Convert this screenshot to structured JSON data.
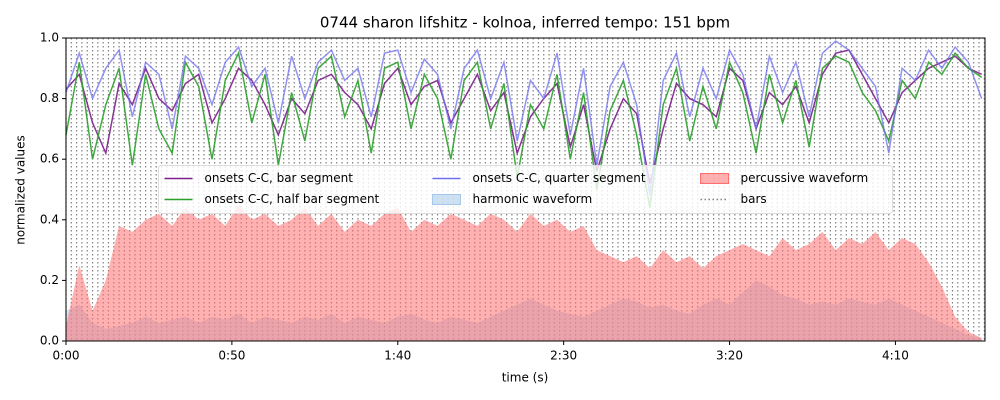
{
  "chart_data": {
    "type": "line",
    "title": "0744 sharon lifshitz - kolnoa, inferred tempo: 151 bpm",
    "xlabel": "time (s)",
    "ylabel": "normalized values",
    "xlim": [
      0,
      277
    ],
    "ylim": [
      0,
      1
    ],
    "xticks": [
      {
        "value": 0,
        "label": "0:00"
      },
      {
        "value": 50,
        "label": "0:50"
      },
      {
        "value": 100,
        "label": "1:40"
      },
      {
        "value": 150,
        "label": "2:30"
      },
      {
        "value": 200,
        "label": "3:20"
      },
      {
        "value": 250,
        "label": "4:10"
      }
    ],
    "yticks": [
      {
        "value": 0,
        "label": "0.0"
      },
      0.2,
      0.4,
      0.6,
      0.8,
      {
        "value": 1,
        "label": "1.0"
      }
    ],
    "legend": "center",
    "x": [
      0,
      4,
      8,
      12,
      16,
      20,
      24,
      28,
      32,
      36,
      40,
      44,
      48,
      52,
      56,
      60,
      64,
      68,
      72,
      76,
      80,
      84,
      88,
      92,
      96,
      100,
      104,
      108,
      112,
      116,
      120,
      124,
      128,
      132,
      136,
      140,
      144,
      148,
      152,
      156,
      160,
      164,
      168,
      172,
      176,
      180,
      184,
      188,
      192,
      196,
      200,
      204,
      208,
      212,
      216,
      220,
      224,
      228,
      232,
      236,
      240,
      244,
      248,
      252,
      256,
      260,
      264,
      268,
      272,
      276
    ],
    "series": [
      {
        "name": "onsets C-C, bar segment",
        "style": "line",
        "color": "#7b1f8c",
        "values": [
          0.83,
          0.88,
          0.72,
          0.62,
          0.85,
          0.78,
          0.9,
          0.8,
          0.76,
          0.85,
          0.88,
          0.72,
          0.8,
          0.9,
          0.86,
          0.78,
          0.68,
          0.8,
          0.75,
          0.86,
          0.88,
          0.82,
          0.78,
          0.7,
          0.85,
          0.9,
          0.78,
          0.84,
          0.86,
          0.72,
          0.8,
          0.88,
          0.76,
          0.82,
          0.62,
          0.74,
          0.8,
          0.85,
          0.64,
          0.78,
          0.56,
          0.7,
          0.8,
          0.75,
          0.52,
          0.7,
          0.85,
          0.8,
          0.78,
          0.74,
          0.9,
          0.86,
          0.7,
          0.82,
          0.78,
          0.84,
          0.72,
          0.88,
          0.95,
          0.96,
          0.88,
          0.8,
          0.72,
          0.82,
          0.86,
          0.9,
          0.92,
          0.94,
          0.9,
          0.88
        ]
      },
      {
        "name": "onsets C-C, half bar segment",
        "style": "line",
        "color": "#2ca02c",
        "values": [
          0.68,
          0.92,
          0.6,
          0.78,
          0.9,
          0.58,
          0.88,
          0.7,
          0.62,
          0.92,
          0.84,
          0.6,
          0.86,
          0.95,
          0.72,
          0.88,
          0.58,
          0.82,
          0.66,
          0.9,
          0.94,
          0.74,
          0.86,
          0.62,
          0.9,
          0.92,
          0.7,
          0.88,
          0.8,
          0.6,
          0.86,
          0.92,
          0.7,
          0.85,
          0.54,
          0.78,
          0.7,
          0.88,
          0.6,
          0.82,
          0.5,
          0.76,
          0.86,
          0.68,
          0.44,
          0.78,
          0.9,
          0.66,
          0.84,
          0.7,
          0.92,
          0.82,
          0.62,
          0.88,
          0.72,
          0.86,
          0.64,
          0.9,
          0.94,
          0.92,
          0.82,
          0.76,
          0.66,
          0.86,
          0.8,
          0.92,
          0.88,
          0.95,
          0.9,
          0.87
        ]
      },
      {
        "name": "onsets C-C, quarter segment",
        "style": "line",
        "color": "#6f6ff0",
        "values": [
          0.82,
          0.95,
          0.8,
          0.9,
          0.96,
          0.74,
          0.92,
          0.88,
          0.7,
          0.94,
          0.9,
          0.78,
          0.92,
          0.97,
          0.84,
          0.9,
          0.72,
          0.94,
          0.8,
          0.92,
          0.96,
          0.86,
          0.9,
          0.74,
          0.95,
          0.96,
          0.82,
          0.93,
          0.88,
          0.7,
          0.9,
          0.96,
          0.8,
          0.92,
          0.66,
          0.86,
          0.8,
          0.95,
          0.68,
          0.9,
          0.58,
          0.84,
          0.92,
          0.78,
          0.48,
          0.86,
          0.95,
          0.74,
          0.9,
          0.8,
          0.96,
          0.88,
          0.7,
          0.94,
          0.82,
          0.92,
          0.74,
          0.95,
          0.99,
          0.96,
          0.9,
          0.84,
          0.62,
          0.9,
          0.86,
          0.96,
          0.9,
          0.97,
          0.92,
          0.8
        ]
      },
      {
        "name": "harmonic waveform",
        "style": "area",
        "color": "#a6c8e8",
        "values": [
          0.1,
          0.12,
          0.06,
          0.04,
          0.05,
          0.06,
          0.08,
          0.06,
          0.07,
          0.08,
          0.06,
          0.08,
          0.07,
          0.09,
          0.06,
          0.08,
          0.07,
          0.06,
          0.08,
          0.07,
          0.09,
          0.06,
          0.08,
          0.07,
          0.06,
          0.08,
          0.09,
          0.07,
          0.06,
          0.08,
          0.07,
          0.06,
          0.08,
          0.1,
          0.12,
          0.14,
          0.12,
          0.1,
          0.09,
          0.08,
          0.1,
          0.12,
          0.14,
          0.13,
          0.11,
          0.12,
          0.1,
          0.09,
          0.12,
          0.14,
          0.12,
          0.16,
          0.2,
          0.18,
          0.15,
          0.14,
          0.12,
          0.13,
          0.12,
          0.14,
          0.13,
          0.12,
          0.14,
          0.12,
          0.1,
          0.08,
          0.06,
          0.04,
          0.02,
          0.01
        ]
      },
      {
        "name": "percussive waveform",
        "style": "area",
        "color": "#ff6f6f",
        "values": [
          0.05,
          0.25,
          0.1,
          0.2,
          0.38,
          0.36,
          0.4,
          0.42,
          0.38,
          0.44,
          0.4,
          0.42,
          0.38,
          0.45,
          0.4,
          0.42,
          0.38,
          0.4,
          0.44,
          0.38,
          0.42,
          0.36,
          0.4,
          0.38,
          0.42,
          0.44,
          0.36,
          0.4,
          0.38,
          0.42,
          0.4,
          0.38,
          0.42,
          0.4,
          0.36,
          0.42,
          0.38,
          0.4,
          0.36,
          0.38,
          0.3,
          0.28,
          0.26,
          0.28,
          0.24,
          0.3,
          0.26,
          0.28,
          0.24,
          0.28,
          0.3,
          0.32,
          0.3,
          0.28,
          0.34,
          0.3,
          0.32,
          0.36,
          0.3,
          0.34,
          0.32,
          0.36,
          0.3,
          0.34,
          0.32,
          0.26,
          0.18,
          0.08,
          0.03,
          0.01
        ]
      },
      {
        "name": "bars",
        "style": "vlines",
        "color": "#808080",
        "x": [
          0,
          1.6,
          3.2,
          4.8,
          6.4,
          8,
          9.6,
          11.2,
          12.8,
          14.4,
          16,
          17.6,
          19.2,
          20.8,
          22.4,
          24,
          25.6,
          27.2,
          28.8,
          30.4,
          32,
          33.6,
          35.2,
          36.8,
          38.4,
          40,
          41.6,
          43.2,
          44.8,
          46.4,
          48,
          49.6,
          51.2,
          52.8,
          54.4,
          56,
          57.6,
          59.2,
          60.8,
          62.4,
          64,
          65.6,
          67.2,
          68.8,
          70.4,
          72,
          73.6,
          75.2,
          76.8,
          78.4,
          80,
          81.6,
          83.2,
          84.8,
          86.4,
          88,
          89.6,
          91.2,
          92.8,
          94.4,
          96,
          97.6,
          99.2,
          100.8,
          102.4,
          104,
          105.6,
          107.2,
          108.8,
          110.4,
          112,
          113.6,
          115.2,
          116.8,
          118.4,
          120,
          121.6,
          123.2,
          124.8,
          126.4,
          128,
          129.6,
          131.2,
          132.8,
          134.4,
          136,
          137.6,
          139.2,
          140.8,
          142.4,
          144,
          145.6,
          147.2,
          148.8,
          150.4,
          152,
          153.6,
          155.2,
          156.8,
          158.4,
          160,
          161.6,
          163.2,
          164.8,
          166.4,
          168,
          169.6,
          171.2,
          172.8,
          174.4,
          176,
          177.6,
          179.2,
          180.8,
          182.4,
          184,
          185.6,
          187.2,
          188.8,
          190.4,
          192,
          193.6,
          195.2,
          196.8,
          198.4,
          200,
          201.6,
          203.2,
          204.8,
          206.4,
          208,
          209.6,
          211.2,
          212.8,
          214.4,
          216,
          217.6,
          219.2,
          220.8,
          222.4,
          224,
          225.6,
          227.2,
          228.8,
          230.4,
          232,
          233.6,
          235.2,
          236.8,
          238.4,
          240,
          241.6,
          243.2,
          244.8,
          246.4,
          248,
          249.6,
          251.2,
          252.8,
          254.4,
          256,
          257.6,
          259.2,
          260.8,
          262.4,
          264,
          265.6,
          267.2,
          268.8,
          270.4,
          272,
          273.6,
          275.2,
          276.8
        ]
      }
    ]
  }
}
